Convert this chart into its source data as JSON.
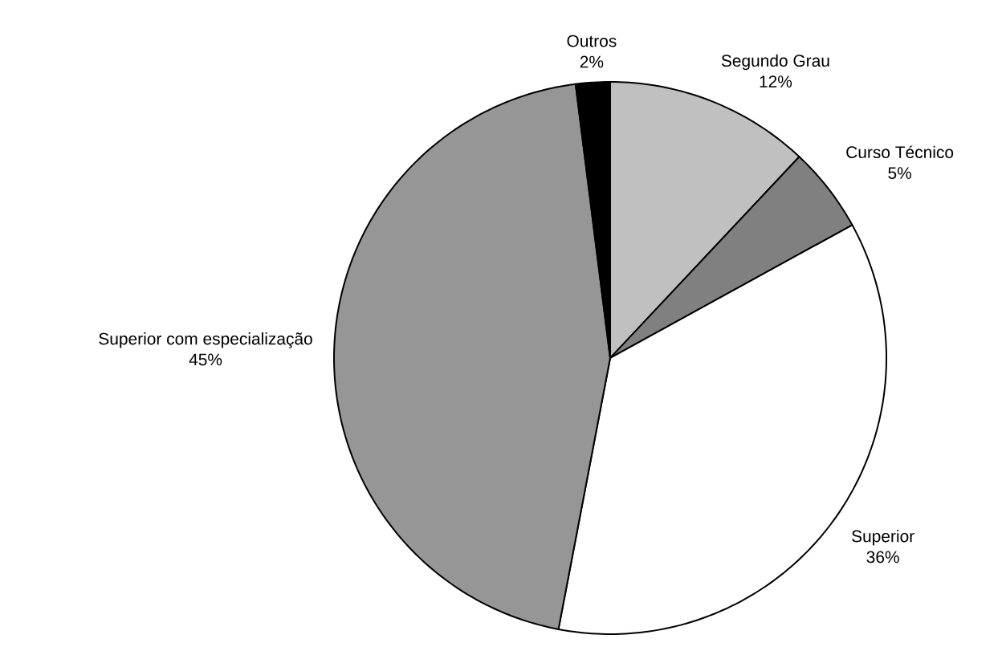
{
  "chart_data": {
    "type": "pie",
    "categories": [
      "Segundo Grau",
      "Curso Técnico",
      "Superior",
      "Superior com especialização",
      "Outros"
    ],
    "values": [
      12,
      5,
      36,
      45,
      2
    ],
    "value_labels": [
      "12%",
      "5%",
      "36%",
      "45%",
      "2%"
    ],
    "colors": [
      "#c0c0c0",
      "#808080",
      "#ffffff",
      "#969696",
      "#000000"
    ]
  }
}
